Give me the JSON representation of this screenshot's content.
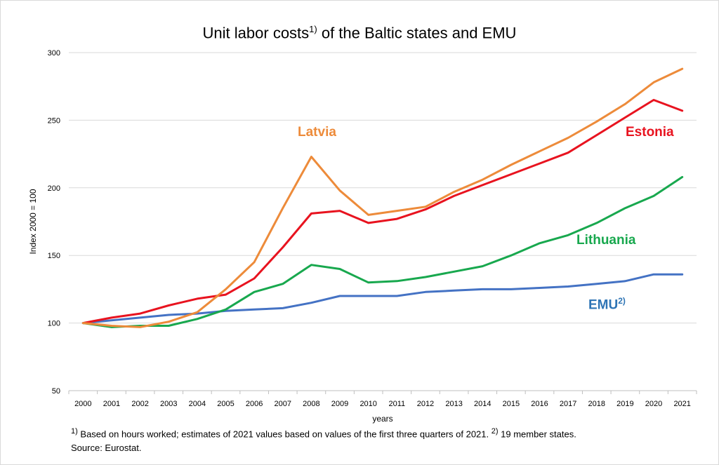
{
  "chart_data": {
    "type": "line",
    "title_main": "Unit labor costs",
    "title_sup": "1)",
    "title_rest": " of the Baltic states and EMU",
    "xlabel": "years",
    "ylabel": "Index 2000 = 100",
    "ylim": [
      50,
      300
    ],
    "yticks": [
      "50",
      "100",
      "150",
      "200",
      "250",
      "300"
    ],
    "grid": true,
    "categories": [
      "2000",
      "2001",
      "2002",
      "2003",
      "2004",
      "2005",
      "2006",
      "2007",
      "2008",
      "2009",
      "2010",
      "2011",
      "2012",
      "2013",
      "2014",
      "2015",
      "2016",
      "2017",
      "2018",
      "2019",
      "2020",
      "2021"
    ],
    "series": [
      {
        "name": "Latvia",
        "color": "#ed8b3a",
        "values": [
          100,
          98,
          97,
          101,
          108,
          125,
          145,
          185,
          223,
          198,
          180,
          183,
          186,
          197,
          206,
          217,
          227,
          237,
          249,
          262,
          278,
          288
        ]
      },
      {
        "name": "Estonia",
        "color": "#e8131f",
        "values": [
          100,
          104,
          107,
          113,
          118,
          121,
          133,
          156,
          181,
          183,
          174,
          177,
          184,
          194,
          202,
          210,
          218,
          226,
          239,
          252,
          265,
          257
        ]
      },
      {
        "name": "Lithuania",
        "color": "#18a84e",
        "values": [
          100,
          97,
          98,
          98,
          103,
          110,
          123,
          129,
          143,
          140,
          130,
          131,
          134,
          138,
          142,
          150,
          159,
          165,
          174,
          185,
          194,
          208
        ]
      },
      {
        "name": "EMU",
        "name_sup": "2)",
        "color": "#4472c4",
        "label_color": "#2e74b5",
        "values": [
          100,
          102,
          104,
          106,
          107,
          109,
          110,
          111,
          115,
          120,
          120,
          120,
          123,
          124,
          125,
          125,
          126,
          127,
          129,
          131,
          136,
          136
        ]
      }
    ]
  },
  "footnotes": {
    "line1_sup1": "1)",
    "line1_text": " Based on hours worked; estimates of 2021 values based on values of the first three quarters of 2021. ",
    "line1_sup2": "2)",
    "line1_text2": " 19 member states.",
    "line2": "Source: Eurostat."
  }
}
